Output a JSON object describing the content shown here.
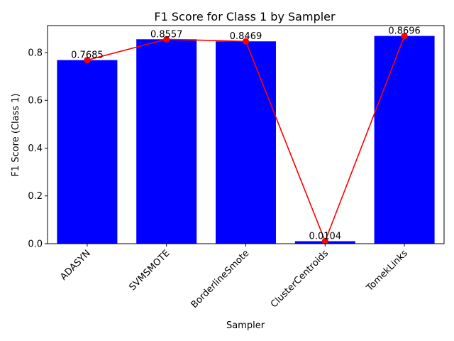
{
  "chart_data": {
    "type": "bar",
    "title": "F1 Score for Class 1 by Sampler",
    "xlabel": "Sampler",
    "ylabel": "F1 Score (Class 1)",
    "categories": [
      "ADASYN",
      "SVMSMOTE",
      "BorderlineSmote",
      "ClusterCentroids",
      "TomekLinks"
    ],
    "values": [
      0.7685,
      0.8557,
      0.8469,
      0.0104,
      0.8696
    ],
    "data_labels": [
      "0.7685",
      "0.8557",
      "0.8469",
      "0.0104",
      "0.8696"
    ],
    "overlay_line": {
      "type": "line",
      "marker": "circle",
      "values": [
        0.7685,
        0.8557,
        0.8469,
        0.0104,
        0.8696
      ]
    },
    "ylim": [
      0,
      0.913
    ],
    "yticks": [
      0.0,
      0.2,
      0.4,
      0.6,
      0.8
    ],
    "ytick_labels": [
      "0.0",
      "0.2",
      "0.4",
      "0.6",
      "0.8"
    ],
    "xtick_rotation": 45,
    "grid": false,
    "legend": false,
    "colors": {
      "bar": "#0000ff",
      "line": "#ff0000",
      "axis": "#000000"
    }
  }
}
